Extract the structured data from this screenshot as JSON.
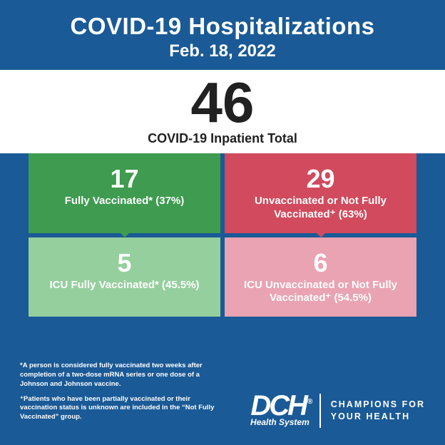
{
  "colors": {
    "background": "#1a5a96",
    "band": "#ffffff",
    "green_dark": "#3e9b4f",
    "red_dark": "#d14a5d",
    "green_light": "#95cf9d",
    "red_light": "#e9a3b2",
    "text_dark": "#212121",
    "text_light": "#ffffff"
  },
  "header": {
    "title": "COVID-19 Hospitalizations",
    "date": "Feb. 18, 2022"
  },
  "total": {
    "number": "46",
    "label": "COVID-19 Inpatient Total"
  },
  "boxes": {
    "top_left": {
      "value": "17",
      "label": "Fully Vaccinated* (37%)"
    },
    "top_right": {
      "value": "29",
      "label": "Unvaccinated or Not Fully Vaccinated⁺ (63%)"
    },
    "bottom_left": {
      "value": "5",
      "label": "ICU Fully Vaccinated* (45.5%)"
    },
    "bottom_right": {
      "value": "6",
      "label": "ICU Unvaccinated or Not Fully Vaccinated⁺ (54.5%)"
    }
  },
  "footnotes": {
    "a": "*A person is considered fully vaccinated two weeks after completion of a two-dose mRNA series or one dose of a Johnson and Johnson vaccine.",
    "b": "⁺Patients who have been partially vaccinated or their vaccination status is unknown are included in the “Not Fully Vaccinated” group."
  },
  "brand": {
    "logo_main": "DCH",
    "registered": "®",
    "logo_sub": "Health System",
    "tagline_l1": "CHAMPIONS FOR",
    "tagline_l2": "YOUR HEALTH"
  }
}
